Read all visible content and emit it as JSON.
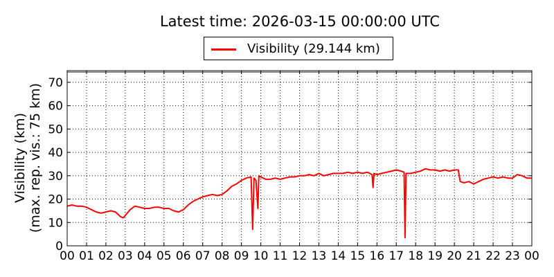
{
  "chart_data": {
    "type": "line",
    "title": "Latest time: 2026-03-15 00:00:00 UTC",
    "ylabel_line1": "Visibility (km)",
    "ylabel_line2": "(max. rep. vis.: 75 km)",
    "xlabel": "",
    "ylim": [
      0,
      75
    ],
    "yticks": [
      0,
      10,
      20,
      30,
      40,
      50,
      60,
      70
    ],
    "xlim": [
      0,
      24
    ],
    "xticks": [
      "00",
      "01",
      "02",
      "03",
      "04",
      "05",
      "06",
      "07",
      "08",
      "09",
      "10",
      "11",
      "12",
      "13",
      "14",
      "15",
      "16",
      "17",
      "18",
      "19",
      "20",
      "21",
      "22",
      "23",
      "00"
    ],
    "grid": true,
    "legend_position": "top-center",
    "series": [
      {
        "name": "Visibility (29.144 km)",
        "color": "#ff0000",
        "x_hours": [
          0,
          0.25,
          0.5,
          0.75,
          1,
          1.25,
          1.5,
          1.75,
          2,
          2.25,
          2.5,
          2.75,
          2.9,
          3,
          3.25,
          3.5,
          3.75,
          4,
          4.25,
          4.5,
          4.75,
          5,
          5.25,
          5.5,
          5.75,
          6,
          6.25,
          6.5,
          6.75,
          7,
          7.25,
          7.5,
          7.75,
          8,
          8.25,
          8.5,
          8.75,
          9,
          9.25,
          9.5,
          9.58,
          9.65,
          9.75,
          9.85,
          9.9,
          10,
          10.25,
          10.5,
          10.75,
          11,
          11.25,
          11.5,
          11.75,
          12,
          12.25,
          12.5,
          12.75,
          13,
          13.25,
          13.5,
          13.75,
          14,
          14.25,
          14.5,
          14.75,
          15,
          15.25,
          15.5,
          15.75,
          15.8,
          15.85,
          16,
          16.25,
          16.5,
          16.75,
          17,
          17.25,
          17.4,
          17.45,
          17.5,
          17.75,
          18,
          18.25,
          18.5,
          18.75,
          19,
          19.25,
          19.5,
          19.75,
          20,
          20.2,
          20.3,
          20.5,
          20.75,
          21,
          21.25,
          21.5,
          21.75,
          22,
          22.25,
          22.5,
          22.75,
          23,
          23.25,
          23.5,
          23.75,
          24
        ],
        "y_km": [
          17,
          17.5,
          17,
          17,
          16.5,
          15.5,
          14.5,
          14,
          14.5,
          15,
          14.5,
          12.5,
          12,
          13,
          15.5,
          17,
          16.5,
          16,
          16,
          16.5,
          16.5,
          16,
          16,
          15,
          14.5,
          15.5,
          17.5,
          19,
          20,
          21,
          21.5,
          22,
          21.5,
          22,
          23.5,
          25.5,
          26.5,
          28,
          29,
          29.5,
          7,
          29,
          28,
          16,
          30,
          29.5,
          28.5,
          28.5,
          29,
          28.5,
          29,
          29.5,
          29.5,
          30,
          30,
          30.5,
          30,
          31,
          30,
          30.5,
          31,
          31,
          31,
          31.5,
          31,
          31.5,
          31,
          31.5,
          30.5,
          25,
          31,
          30.5,
          31,
          31.5,
          32,
          32.5,
          32,
          31.5,
          3.5,
          31,
          31,
          31.5,
          32,
          33,
          32.5,
          32.5,
          32,
          32.5,
          32,
          32.5,
          32.5,
          27.5,
          27,
          27.5,
          26.5,
          27.5,
          28.5,
          29,
          29.5,
          29,
          29.5,
          29,
          29,
          30.5,
          30,
          29,
          29
        ]
      }
    ]
  }
}
